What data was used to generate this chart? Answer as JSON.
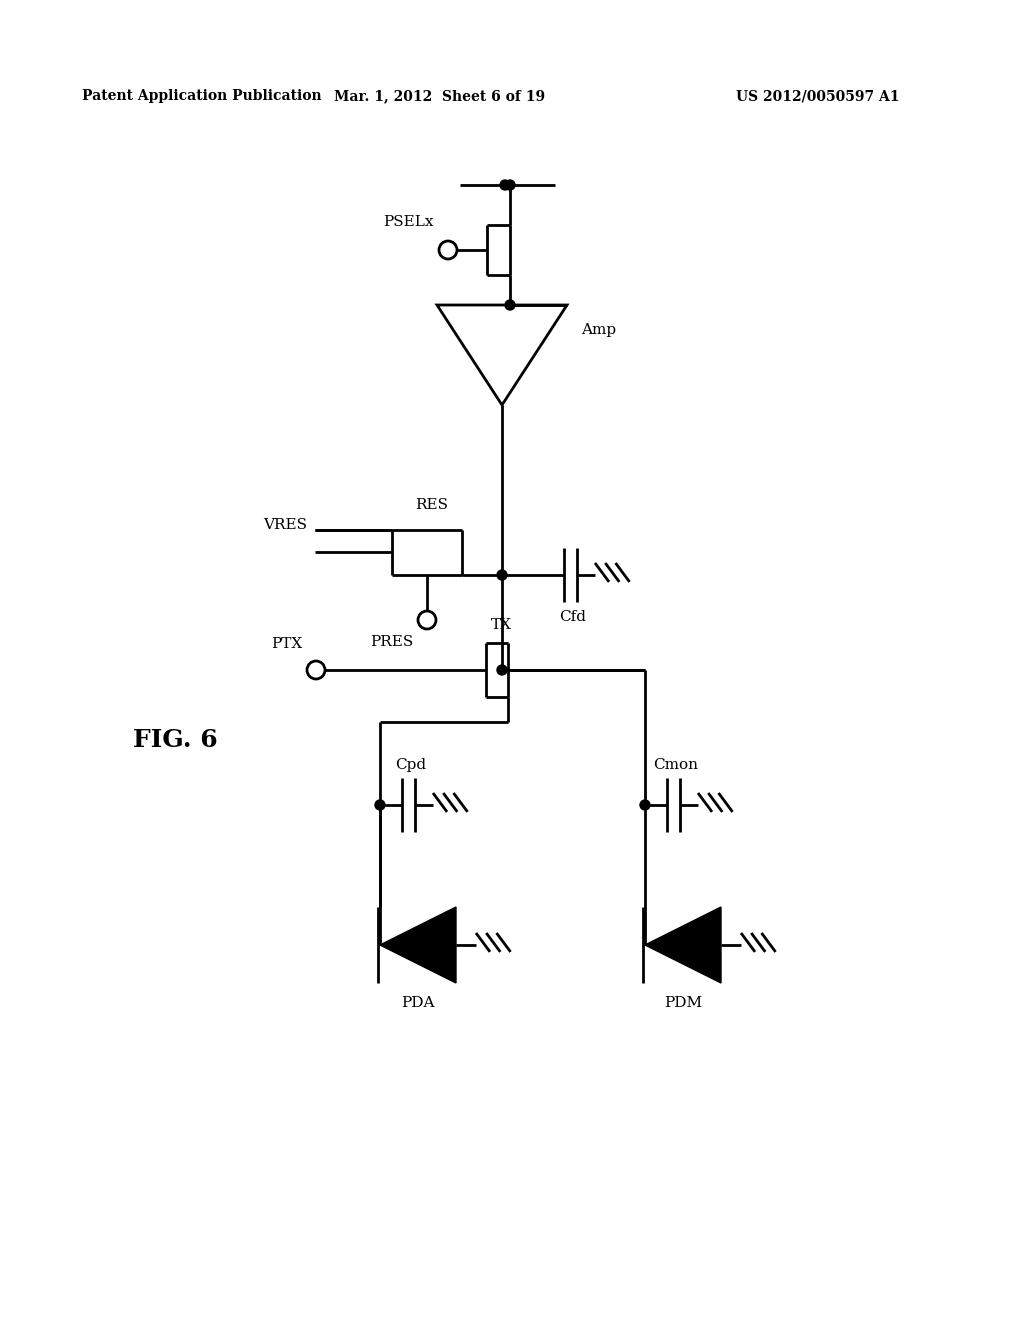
{
  "header_left": "Patent Application Publication",
  "header_mid": "Mar. 1, 2012  Sheet 6 of 19",
  "header_right": "US 2012/0050597 A1",
  "fig_label": "FIG. 6",
  "bg": "#ffffff",
  "lc": "black",
  "lw": 2.0
}
